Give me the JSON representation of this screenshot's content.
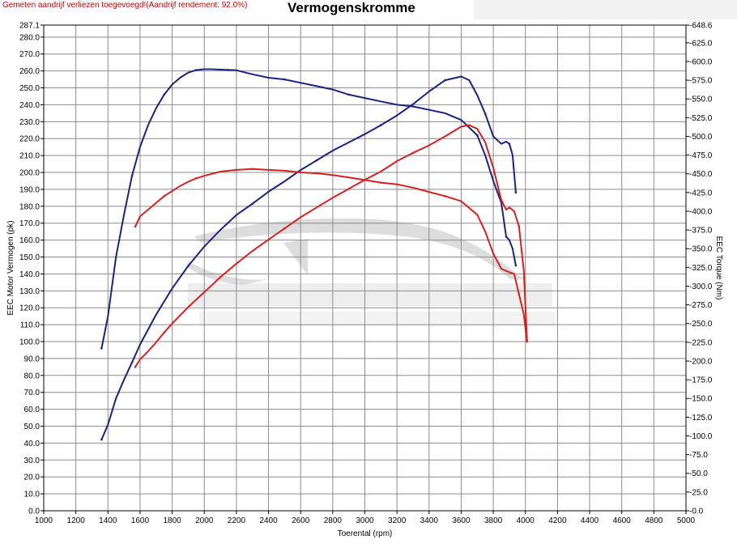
{
  "header": {
    "note": "Gemeten aandrijf verliezen toegevoegd!(Aandrijf rendement: 92.0%)",
    "title": "Vermogenskromme"
  },
  "chart_data": {
    "type": "line",
    "title": "Vermogenskromme",
    "xlabel": "Toerental (rpm)",
    "ylabel_left": "EEC Motor Vermogen (pk)",
    "ylabel_right": "EEC Torque (Nm)",
    "xlim": [
      1000,
      5000
    ],
    "ylim_left": [
      0,
      287.1
    ],
    "ylim_right": [
      0,
      648.6
    ],
    "grid": true,
    "x_ticks": [
      "1000",
      "1200",
      "1400",
      "1600",
      "1800",
      "2000",
      "2200",
      "2400",
      "2600",
      "2800",
      "3000",
      "3200",
      "3400",
      "3600",
      "3800",
      "4000",
      "4200",
      "4400",
      "4600",
      "4800",
      "5000"
    ],
    "left_ticks": [
      "0.0",
      "10.0",
      "20.0",
      "30.0",
      "40.0",
      "50.0",
      "60.0",
      "70.0",
      "80.0",
      "90.0",
      "100.0",
      "110.0",
      "120.0",
      "130.0",
      "140.0",
      "150.0",
      "160.0",
      "170.0",
      "180.0",
      "190.0",
      "200.0",
      "210.0",
      "220.0",
      "230.0",
      "240.0",
      "250.0",
      "260.0",
      "270.0",
      "280.0",
      "287.1"
    ],
    "right_ticks": [
      "0.0",
      "25.0",
      "50.0",
      "75.0",
      "100.0",
      "125.0",
      "150.0",
      "175.0",
      "200.0",
      "225.0",
      "250.0",
      "275.0",
      "300.0",
      "325.0",
      "350.0",
      "375.0",
      "400.0",
      "425.0",
      "450.0",
      "475.0",
      "500.0",
      "525.0",
      "550.0",
      "575.0",
      "600.0",
      "625.0",
      "648.6"
    ],
    "colors": {
      "blue": "#1a237e",
      "red": "#d32222",
      "watermark": "#cfcfcf"
    },
    "series": [
      {
        "color": "blue",
        "axis": "left",
        "quantity": "power",
        "x": [
          1360,
          1400,
          1450,
          1500,
          1550,
          1600,
          1650,
          1700,
          1750,
          1800,
          1850,
          1900,
          1950,
          2000,
          2050,
          2100,
          2150,
          2200,
          2300,
          2400,
          2500,
          2600,
          2700,
          2800,
          2900,
          3000,
          3100,
          3200,
          3300,
          3400,
          3500,
          3600,
          3700,
          3750,
          3800,
          3850,
          3880,
          3900,
          3920,
          3940
        ],
        "y": [
          96,
          115,
          150,
          175,
          198,
          215,
          228,
          238,
          246,
          252,
          256,
          259,
          260.5,
          261,
          261,
          260.8,
          260.6,
          260.4,
          258,
          256,
          255,
          253,
          251,
          249,
          246,
          244,
          242,
          240,
          239,
          237,
          235,
          231,
          222,
          210,
          195,
          182,
          162,
          160,
          155,
          145
        ]
      },
      {
        "color": "blue",
        "axis": "right",
        "quantity": "torque",
        "x": [
          1360,
          1400,
          1450,
          1500,
          1550,
          1600,
          1700,
          1800,
          1900,
          2000,
          2100,
          2200,
          2300,
          2400,
          2500,
          2600,
          2700,
          2800,
          2900,
          3000,
          3100,
          3200,
          3300,
          3400,
          3500,
          3600,
          3650,
          3700,
          3750,
          3800,
          3850,
          3880,
          3900,
          3920,
          3940
        ],
        "y": [
          95,
          115,
          150,
          175,
          198,
          222,
          262,
          297,
          327,
          353,
          375,
          395,
          410,
          426,
          440,
          455,
          468,
          481,
          492,
          503,
          515,
          528,
          543,
          560,
          575,
          580,
          575,
          555,
          530,
          500,
          490,
          493,
          490,
          475,
          425
        ]
      },
      {
        "color": "red",
        "axis": "left",
        "quantity": "power",
        "x": [
          1570,
          1600,
          1650,
          1700,
          1750,
          1800,
          1850,
          1900,
          1950,
          2000,
          2100,
          2200,
          2300,
          2400,
          2500,
          2600,
          2700,
          2800,
          2900,
          3000,
          3100,
          3200,
          3300,
          3400,
          3500,
          3600,
          3700,
          3750,
          3800,
          3850,
          3900,
          3930,
          3960,
          3990,
          4010
        ],
        "y": [
          168,
          174,
          178,
          182,
          186,
          189,
          192,
          194.5,
          196.5,
          198,
          200.5,
          201.5,
          202,
          201.5,
          201,
          200,
          199.5,
          198.5,
          197,
          195.5,
          194,
          193,
          191,
          188.5,
          186,
          183,
          175,
          165,
          152,
          143,
          141,
          140,
          128,
          116,
          100
        ]
      },
      {
        "color": "red",
        "axis": "right",
        "quantity": "torque",
        "x": [
          1570,
          1600,
          1650,
          1700,
          1750,
          1800,
          1900,
          2000,
          2100,
          2200,
          2300,
          2400,
          2500,
          2600,
          2700,
          2800,
          2900,
          3000,
          3100,
          3200,
          3300,
          3400,
          3500,
          3600,
          3650,
          3700,
          3750,
          3800,
          3850,
          3880,
          3900,
          3930,
          3960,
          3990,
          4010
        ],
        "y": [
          192,
          202,
          213,
          225,
          238,
          250,
          272,
          292,
          312,
          330,
          347,
          362,
          377,
          392,
          405,
          418,
          430,
          442,
          453,
          467,
          478,
          488,
          500,
          513,
          515,
          510,
          492,
          458,
          415,
          402,
          405,
          400,
          380,
          320,
          228
        ]
      }
    ]
  }
}
